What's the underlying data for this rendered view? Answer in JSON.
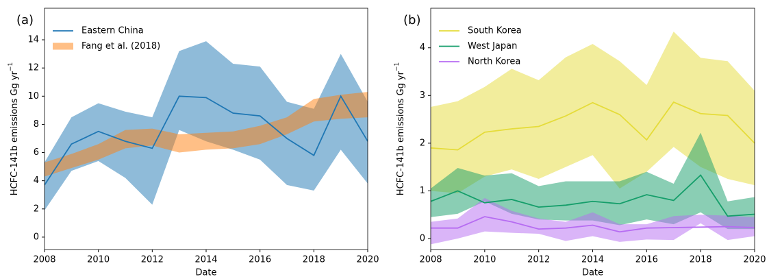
{
  "chart_data": [
    {
      "type": "line",
      "panel_label": "(a)",
      "xlabel": "Date",
      "ylabel": "HCFC-141b emissions Gg yr",
      "ylabel_sup": "−1",
      "x": [
        2008,
        2009,
        2010,
        2011,
        2012,
        2013,
        2014,
        2015,
        2016,
        2017,
        2018,
        2019,
        2020
      ],
      "xlim": [
        2008,
        2020
      ],
      "xticks": [
        2008,
        2010,
        2012,
        2014,
        2016,
        2018,
        2020
      ],
      "ylim": [
        -0.88,
        16.24
      ],
      "yticks": [
        0,
        2,
        4,
        6,
        8,
        10,
        12,
        14
      ],
      "legend": "upper left",
      "series": [
        {
          "name": "Eastern China",
          "color": "#1f77b4",
          "values": [
            3.7,
            6.6,
            7.5,
            6.8,
            6.3,
            10.0,
            9.9,
            8.8,
            8.6,
            7.0,
            5.8,
            10.0,
            6.8
          ],
          "upper": [
            5.3,
            8.5,
            9.5,
            8.9,
            8.5,
            13.2,
            13.9,
            12.3,
            12.1,
            9.6,
            9.1,
            13.0,
            9.6
          ],
          "lower": [
            1.9,
            4.7,
            5.4,
            4.2,
            2.3,
            7.6,
            6.8,
            6.2,
            5.5,
            3.7,
            3.3,
            6.2,
            3.8
          ]
        },
        {
          "name": "Fang et al. (2018)",
          "color": "#ff7f0e",
          "upper": [
            5.3,
            5.9,
            6.6,
            7.6,
            7.7,
            7.3,
            7.4,
            7.5,
            7.9,
            8.5,
            9.8,
            10.1,
            10.3
          ],
          "lower": [
            4.3,
            4.9,
            5.5,
            6.3,
            6.5,
            6.0,
            6.2,
            6.3,
            6.6,
            7.3,
            8.2,
            8.4,
            8.5
          ]
        }
      ]
    },
    {
      "type": "line",
      "panel_label": "(b)",
      "xlabel": "Date",
      "ylabel": "HCFC-141b emissions Gg yr",
      "ylabel_sup": "−1",
      "x": [
        2008,
        2009,
        2010,
        2011,
        2012,
        2013,
        2014,
        2015,
        2016,
        2017,
        2018,
        2019,
        2020
      ],
      "xlim": [
        2008,
        2020
      ],
      "xticks": [
        2008,
        2010,
        2012,
        2014,
        2016,
        2018,
        2020
      ],
      "ylim": [
        -0.23,
        4.83
      ],
      "yticks": [
        0,
        1,
        2,
        3,
        4
      ],
      "legend": "upper left",
      "series": [
        {
          "name": "South Korea",
          "color": "#e5dc3a",
          "values": [
            1.9,
            1.86,
            2.23,
            2.3,
            2.35,
            2.57,
            2.85,
            2.6,
            2.07,
            2.86,
            2.62,
            2.58,
            2.0
          ],
          "upper": [
            2.76,
            2.88,
            3.18,
            3.56,
            3.32,
            3.8,
            4.08,
            3.72,
            3.22,
            4.34,
            3.79,
            3.72,
            3.1
          ],
          "lower": [
            1.0,
            0.95,
            1.3,
            1.45,
            1.25,
            1.5,
            1.75,
            1.05,
            1.4,
            1.92,
            1.5,
            1.25,
            1.12
          ]
        },
        {
          "name": "West Japan",
          "color": "#159e6a",
          "values": [
            0.78,
            1.0,
            0.75,
            0.82,
            0.66,
            0.7,
            0.78,
            0.73,
            0.92,
            0.8,
            1.33,
            0.47,
            0.51
          ],
          "upper": [
            1.05,
            1.48,
            1.32,
            1.37,
            1.1,
            1.2,
            1.2,
            1.2,
            1.4,
            1.15,
            2.22,
            0.78,
            0.87
          ],
          "lower": [
            0.45,
            0.52,
            0.78,
            0.52,
            0.4,
            0.38,
            0.38,
            0.28,
            0.4,
            0.3,
            0.55,
            0.2,
            0.2
          ]
        },
        {
          "name": "North Korea",
          "color": "#b66cf2",
          "values": [
            0.22,
            0.22,
            0.46,
            0.35,
            0.2,
            0.22,
            0.28,
            0.14,
            0.22,
            0.23,
            0.24,
            0.25,
            0.23
          ],
          "upper": [
            0.35,
            0.42,
            0.85,
            0.58,
            0.42,
            0.35,
            0.55,
            0.3,
            0.3,
            0.47,
            0.5,
            0.48,
            0.45
          ],
          "lower": [
            -0.12,
            0.0,
            0.15,
            0.12,
            0.1,
            -0.05,
            0.05,
            -0.07,
            -0.02,
            -0.03,
            0.32,
            -0.03,
            0.05
          ]
        }
      ]
    }
  ]
}
